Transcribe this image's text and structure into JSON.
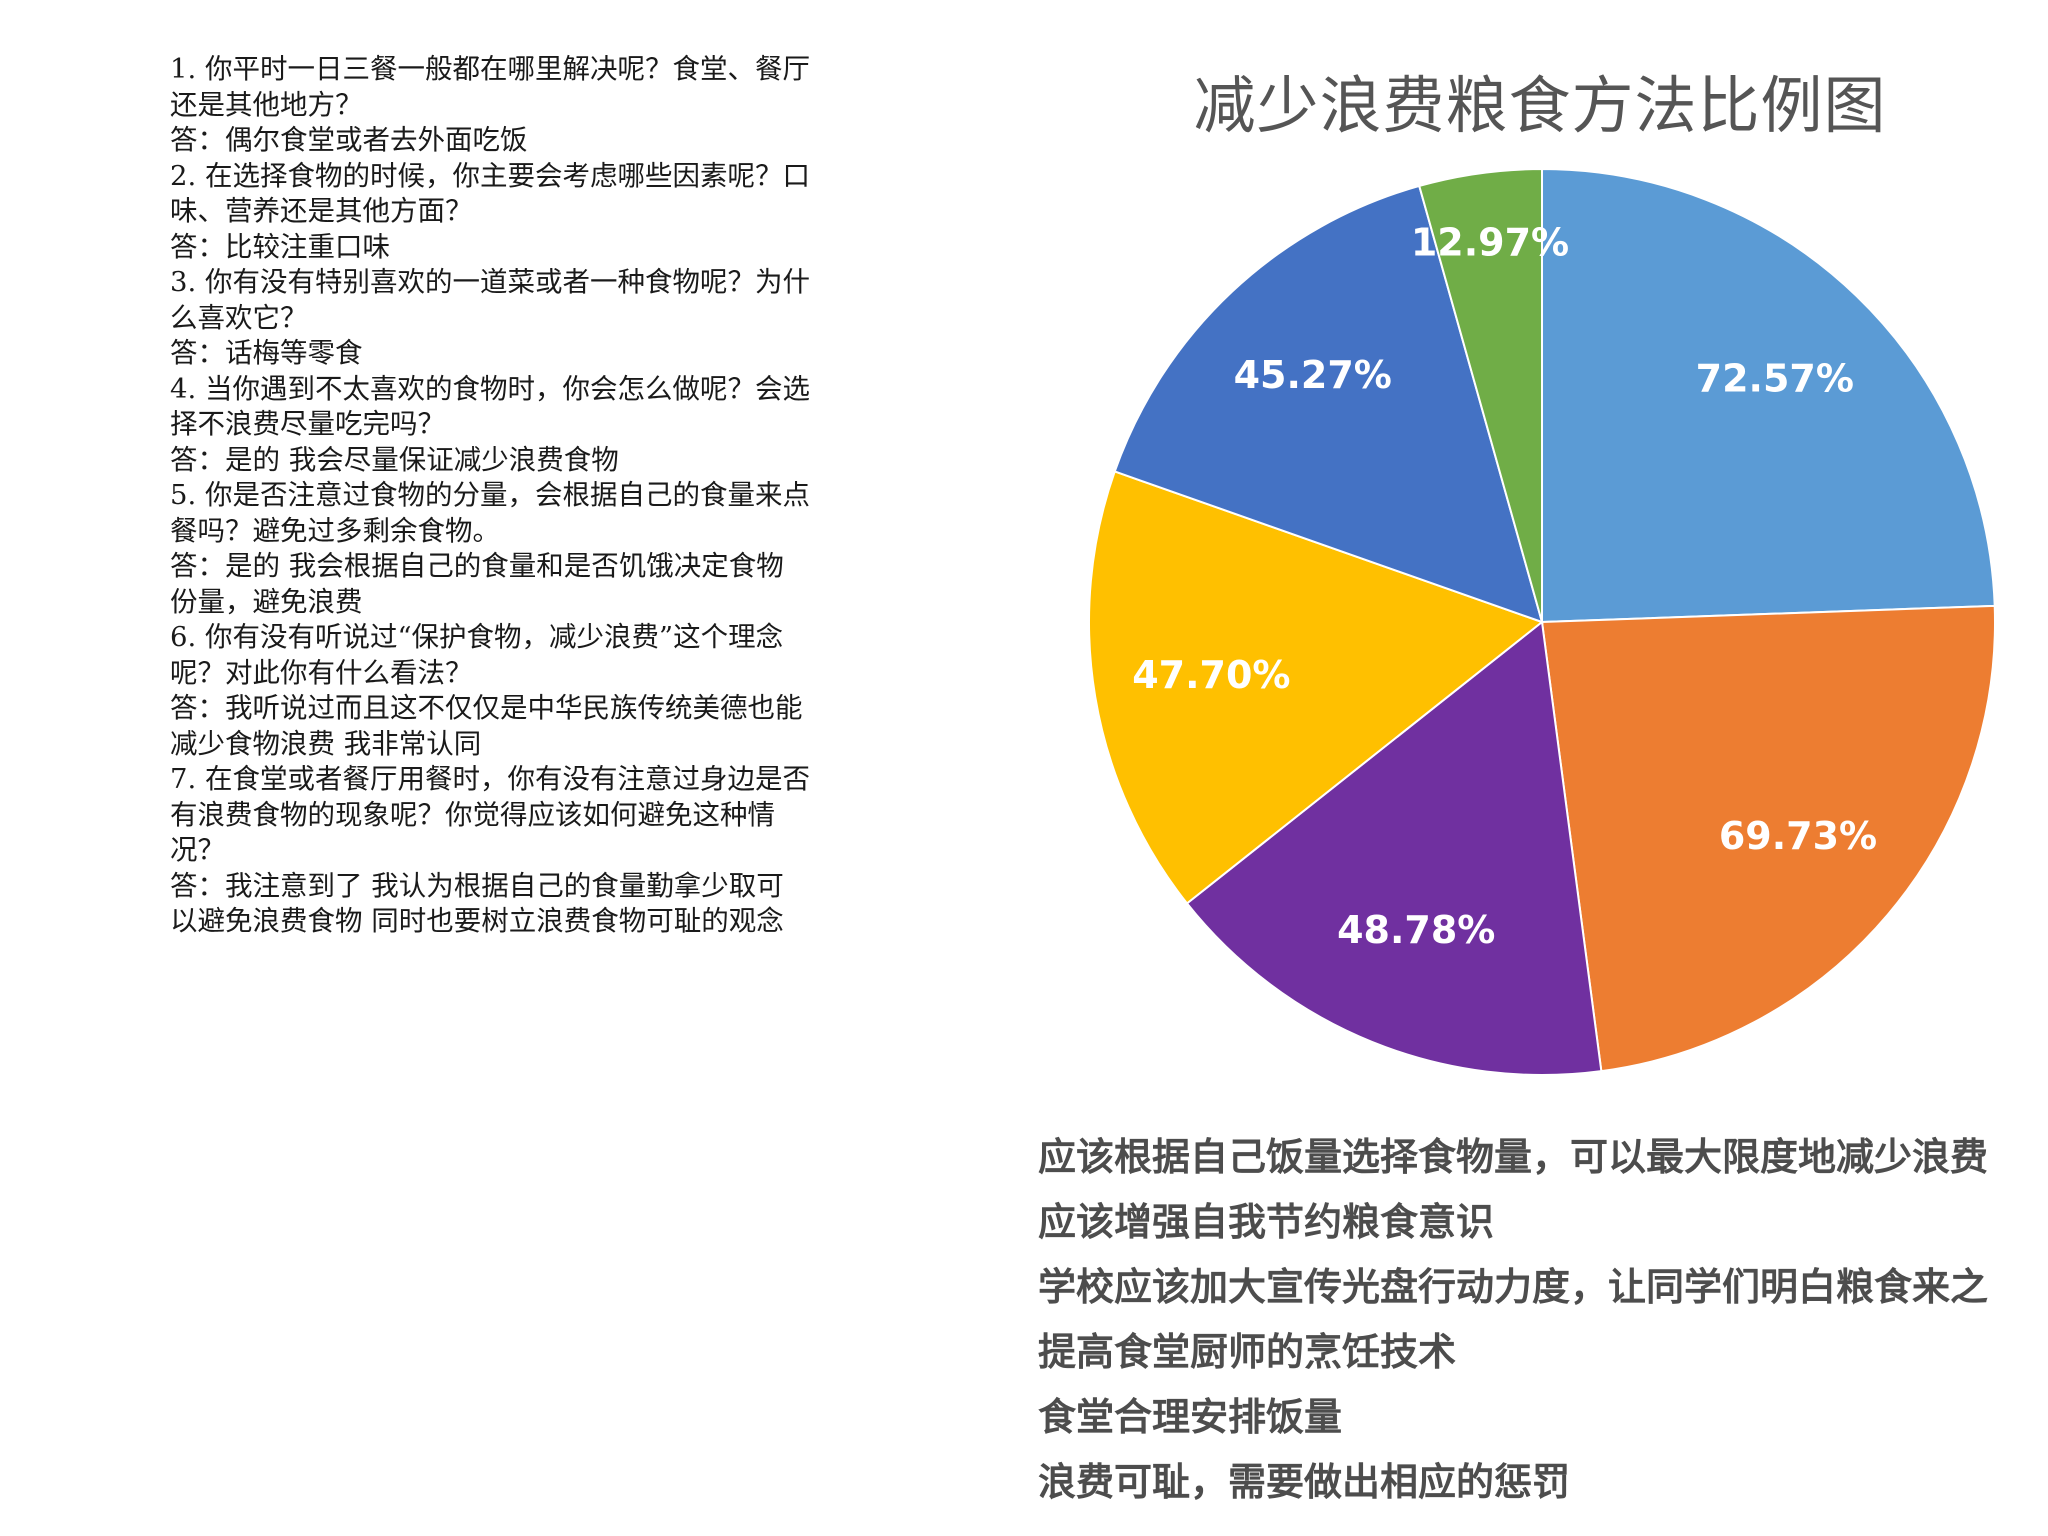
{
  "qa": {
    "lines": [
      "1. 你平时一日三餐一般都在哪里解决呢？食堂、餐厅",
      "还是其他地方？",
      "答：偶尔食堂或者去外面吃饭",
      "2. 在选择食物的时候，你主要会考虑哪些因素呢？口",
      "味、营养还是其他方面？",
      "答：比较注重口味",
      "3. 你有没有特别喜欢的一道菜或者一种食物呢？为什",
      "么喜欢它？",
      "答：话梅等零食",
      "4. 当你遇到不太喜欢的食物时，你会怎么做呢？会选",
      "择不浪费尽量吃完吗？",
      "答：是的 我会尽量保证减少浪费食物",
      "5. 你是否注意过食物的分量，会根据自己的食量来点",
      "餐吗？避免过多剩余食物。",
      "答：是的 我会根据自己的食量和是否饥饿决定食物",
      "份量，避免浪费",
      "6. 你有没有听说过“保护食物，减少浪费”这个理念",
      "呢？对此你有什么看法？",
      "答：我听说过而且这不仅仅是中华民族传统美德也能",
      "减少食物浪费 我非常认同",
      "7. 在食堂或者餐厅用餐时，你有没有注意过身边是否",
      "有浪费食物的现象呢？你觉得应该如何避免这种情",
      "况？",
      "答：我注意到了 我认为根据自己的食量勤拿少取可",
      "以避免浪费食物 同时也要树立浪费食物可耻的观念"
    ]
  },
  "chart_data": {
    "type": "pie",
    "title": "减少浪费粮食方法比例图",
    "categories": [
      "应该根据自己饭量选择食物量，可以最大限度地减少浪费",
      "应该增强自我节约粮食意识",
      "学校应该加大宣传光盘行动力度，让同学们明白粮食来之不易",
      "提高食堂厨师的烹饪技术",
      "食堂合理安排饭量",
      "浪费可耻，需要做出相应的惩罚"
    ],
    "series": [
      {
        "values": [
          72.57,
          69.73,
          48.78,
          47.7,
          45.27,
          12.97
        ],
        "labels": [
          "72.57%",
          "69.73%",
          "48.78%",
          "47.70%",
          "45.27%",
          "12.97%"
        ]
      }
    ],
    "colors": [
      "#5b9bd5",
      "#ed7d31",
      "#7030a0",
      "#ffc000",
      "#4472c4",
      "#70ad47"
    ],
    "legend_visible_text": [
      "应该根据自己饭量选择食物量，可以最大限度地减少浪费",
      "应该增强自我节约粮食意识",
      "学校应该加大宣传光盘行动力度，让同学们明白粮食来之",
      "提高食堂厨师的烹饪技术",
      "食堂合理安排饭量",
      "浪费可耻，需要做出相应的惩罚"
    ],
    "legend_placement": "bottom"
  }
}
